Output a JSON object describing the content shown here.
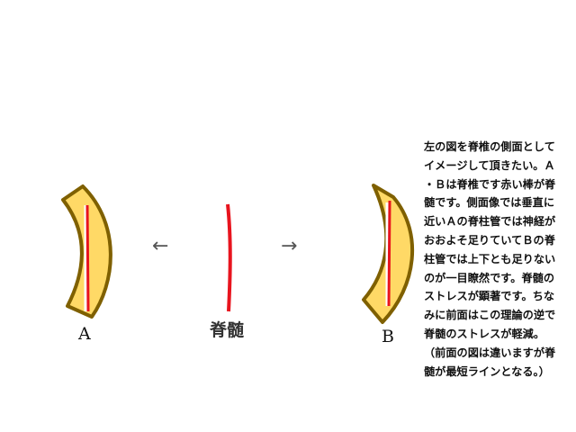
{
  "labels": {
    "left_model": "A",
    "right_model": "B",
    "spinal_cord": "脊髄",
    "arrow_left": "←",
    "arrow_right": "→"
  },
  "description_lines": [
    "左の図を脊椎の側面として",
    "イメージして頂きたい。Ａ",
    "・Ｂは脊椎です赤い棒が脊",
    "髄です。側面像では垂直に",
    "近いＡの脊柱管では神経が",
    "おおよそ足りていてＢの脊",
    "柱管では上下とも足りない",
    "のが一目瞭然です。脊髄の",
    "ストレスが顕著です。ちな",
    "みに前面はこの理論の逆で",
    "脊髄のストレスが軽減。",
    "（前面の図は違いますが脊",
    "髄が最短ラインとなる。）"
  ],
  "colors": {
    "vertebra_fill": "#FFD966",
    "vertebra_stroke": "#7F6000",
    "spinal_cord": "#E8141E",
    "canal_line": "#FFFFFF"
  }
}
